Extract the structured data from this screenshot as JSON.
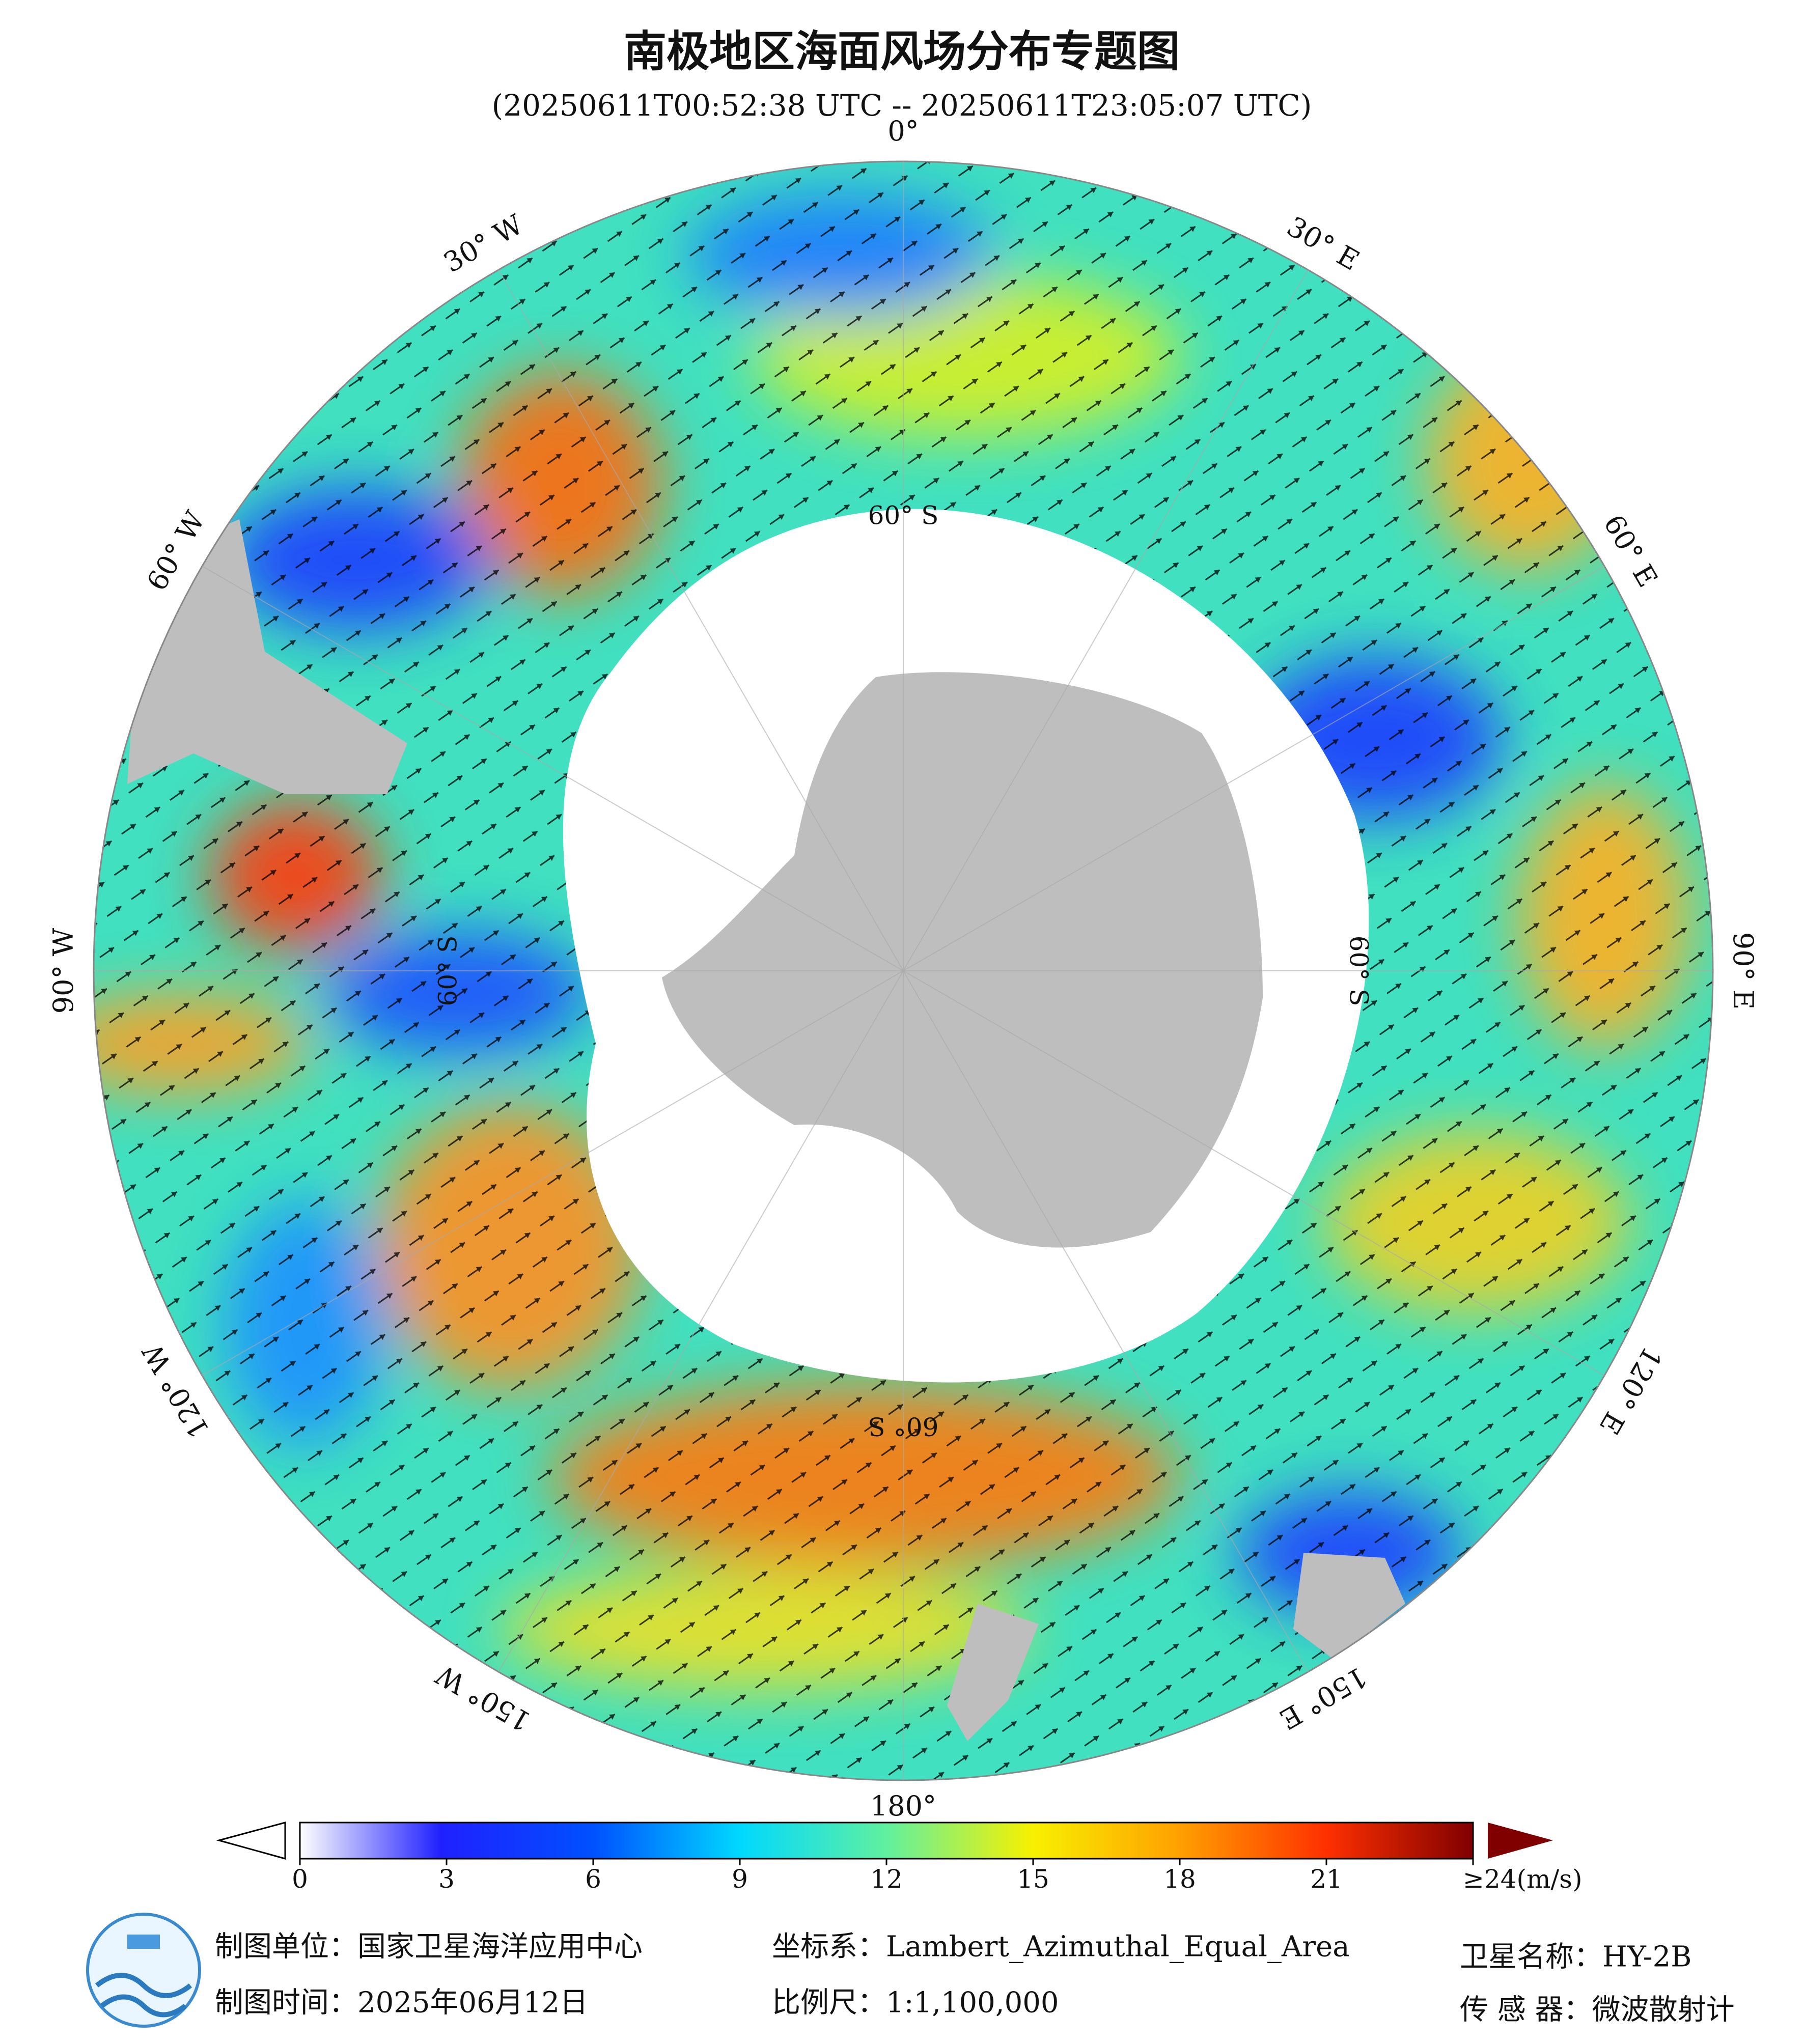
{
  "header": {
    "title": "南极地区海面风场分布专题图",
    "subtitle": "(20250611T00:52:38 UTC -- 20250611T23:05:07 UTC)"
  },
  "map": {
    "longitude_labels": [
      "0°",
      "30° E",
      "60° E",
      "90° E",
      "120° E",
      "150° E",
      "180°",
      "150° W",
      "120° W",
      "90° W",
      "60° W",
      "30° W"
    ],
    "latitude_labels": [
      "60° S",
      "60° S",
      "60° S",
      "60° S"
    ]
  },
  "colorbar": {
    "lim": [
      0,
      24
    ],
    "ticks": [
      0,
      3,
      6,
      9,
      12,
      15,
      18,
      21,
      {
        "value": 24,
        "label": "≥24(m/s)"
      }
    ]
  },
  "footer": {
    "producer": "制图单位：国家卫星海洋应用中心",
    "date": "制图时间：2025年06月12日",
    "crs": "坐标系：Lambert_Azimuthal_Equal_Area",
    "scale": "比例尺：1:1,100,000",
    "satellite": "卫星名称：HY-2B",
    "sensor": "传 感 器：微波散射计"
  }
}
